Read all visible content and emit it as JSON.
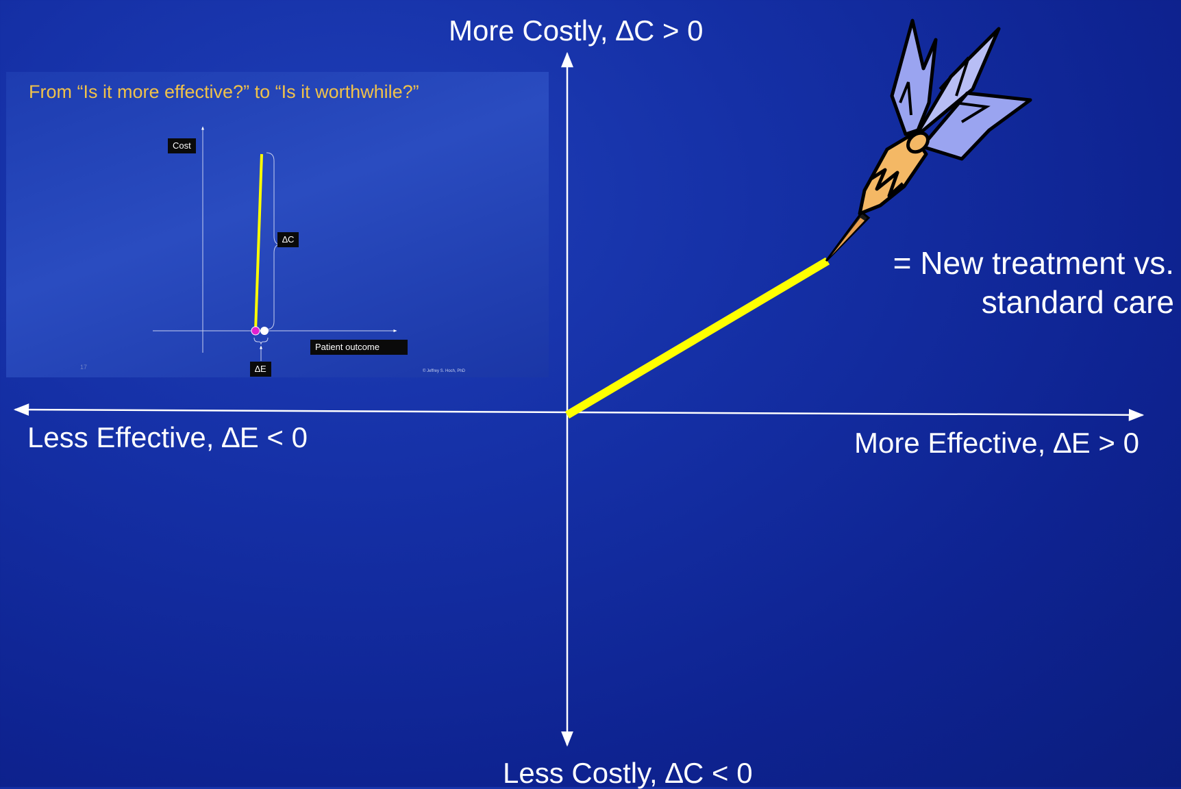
{
  "axes": {
    "top_label": "More Costly, ∆C > 0",
    "bottom_label": "Less Costly, ∆C < 0",
    "left_label": "Less Effective, ∆E < 0",
    "right_label": "More Effective, ∆E > 0"
  },
  "legend": {
    "line1": "= New treatment vs.",
    "line2": "standard care",
    "icon": "dart-icon"
  },
  "inset": {
    "title": "From “Is it more effective?” to “Is it worthwhile?”",
    "cost_label": "Cost",
    "delta_c_label": "∆C",
    "delta_e_label": "∆E",
    "x_axis_label": "Patient outcome",
    "page_number": "17",
    "credit": "© Jeffrey S. Hoch, PhD"
  },
  "colors": {
    "background": "#1530a6",
    "line": "#ffff00",
    "title_gold": "#f0c24a",
    "dot_magenta": "#e020d0",
    "dot_white": "#ffffff"
  }
}
